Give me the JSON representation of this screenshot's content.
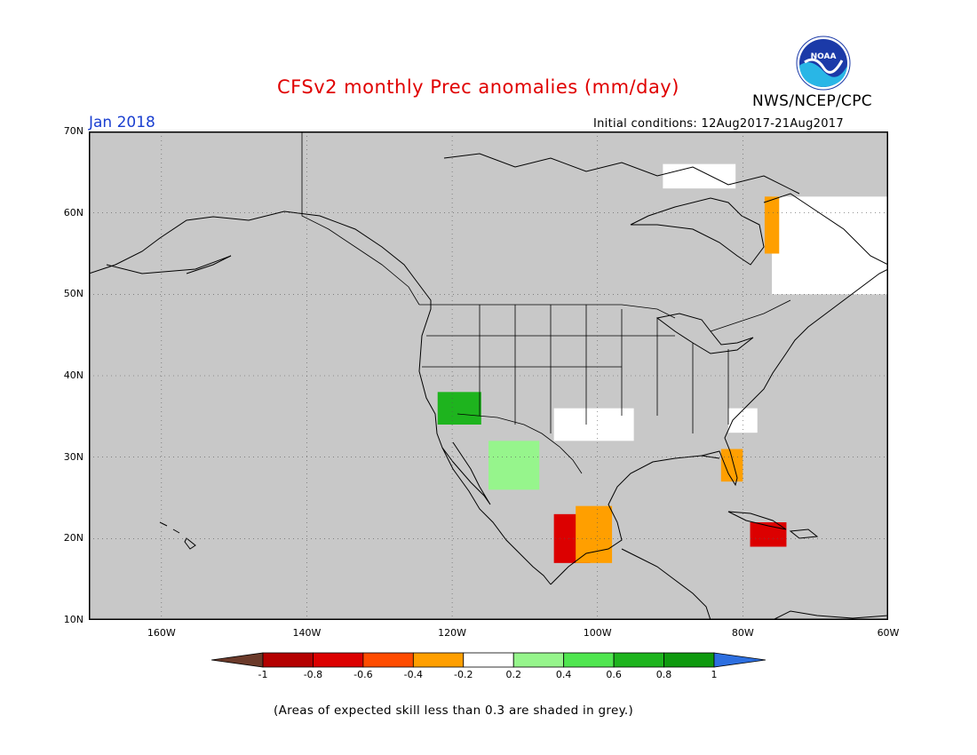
{
  "title": "CFSv2 monthly Prec anomalies (mm/day)",
  "organization": "NWS/NCEP/CPC",
  "logo_text": "NOAA",
  "month": "Jan 2018",
  "initial_conditions": "Initial conditions: 12Aug2017-21Aug2017",
  "footnote": "(Areas of expected skill less than 0.3 are shaded in grey.)",
  "colors": {
    "no_skill": "#c8c8c8",
    "title": "#e00000",
    "month": "#1a3fd0",
    "land_lines": "#000000",
    "grid": "#555555"
  },
  "map": {
    "projection": "lat-lon",
    "lon_range": [
      -170,
      -60
    ],
    "lat_range": [
      10,
      70
    ],
    "lat_labels": [
      "70N",
      "60N",
      "50N",
      "40N",
      "30N",
      "20N",
      "10N"
    ],
    "lon_labels": [
      "160W",
      "140W",
      "120W",
      "100W",
      "80W",
      "60W"
    ],
    "lat_values": [
      70,
      60,
      50,
      40,
      30,
      20,
      10
    ],
    "lon_values": [
      -160,
      -140,
      -120,
      -100,
      -80,
      -60
    ],
    "grid": true
  },
  "colorbar": {
    "levels": [
      "-1",
      "-0.8",
      "-0.6",
      "-0.4",
      "-0.2",
      "0.2",
      "0.4",
      "0.6",
      "0.8",
      "1"
    ],
    "level_values": [
      -1,
      -0.8,
      -0.6,
      -0.4,
      -0.2,
      0.2,
      0.4,
      0.6,
      0.8,
      1
    ],
    "colors": [
      "#6b3a2a",
      "#b40000",
      "#dc0000",
      "#ff4c00",
      "#ff9f00",
      "#ffffff",
      "#96f58c",
      "#50e650",
      "#1eb41e",
      "#0f9a0f",
      "#2d6fe0"
    ]
  },
  "anomaly_regions": [
    {
      "name": "quebec-labrador-white",
      "category": "white",
      "lon": [
        -76,
        -60
      ],
      "lat": [
        50,
        62
      ]
    },
    {
      "name": "hudson-east-orange",
      "category": "orange",
      "lon": [
        -77,
        -75
      ],
      "lat": [
        55,
        62
      ]
    },
    {
      "name": "baffin-white",
      "category": "white",
      "lon": [
        -91,
        -81
      ],
      "lat": [
        63,
        66
      ]
    },
    {
      "name": "southwest-us-green",
      "category": "green",
      "lon": [
        -122,
        -116
      ],
      "lat": [
        34,
        38
      ]
    },
    {
      "name": "texas-white",
      "category": "white",
      "lon": [
        -106,
        -95
      ],
      "lat": [
        32,
        36
      ]
    },
    {
      "name": "baja-sonora-green",
      "category": "light-green",
      "lon": [
        -115,
        -108
      ],
      "lat": [
        26,
        32
      ]
    },
    {
      "name": "west-mexico-red",
      "category": "red",
      "lon": [
        -106,
        -101
      ],
      "lat": [
        17,
        23
      ]
    },
    {
      "name": "central-mexico-orange",
      "category": "orange",
      "lon": [
        -103,
        -98
      ],
      "lat": [
        17,
        24
      ]
    },
    {
      "name": "southeast-us-white",
      "category": "white",
      "lon": [
        -82,
        -78
      ],
      "lat": [
        33,
        36
      ]
    },
    {
      "name": "florida-orange",
      "category": "orange",
      "lon": [
        -83,
        -80
      ],
      "lat": [
        27,
        31
      ]
    },
    {
      "name": "cuba-haiti-red",
      "category": "red",
      "lon": [
        -79,
        -74
      ],
      "lat": [
        19,
        22
      ]
    }
  ]
}
